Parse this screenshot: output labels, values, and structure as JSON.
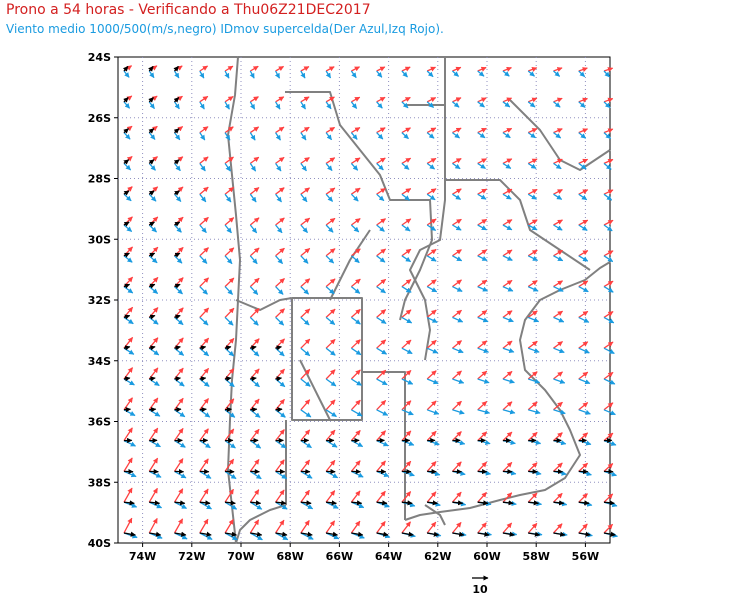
{
  "header": {
    "title": "Prono a 54 horas - Verificando a Thu06Z21DEC2017",
    "subtitle": "Viento medio 1000/500(m/s,negro) IDmov supercelda(Der Azul,Izq Rojo)."
  },
  "map": {
    "lon_range": [
      -75,
      -55
    ],
    "lat_range": [
      -40,
      -24
    ],
    "lat_labels": [
      "24S",
      "26S",
      "28S",
      "30S",
      "32S",
      "34S",
      "36S",
      "38S",
      "40S"
    ],
    "lon_labels": [
      "74W",
      "72W",
      "70W",
      "68W",
      "66W",
      "64W",
      "62W",
      "60W",
      "58W",
      "56W"
    ],
    "grid": "dotted",
    "colors": {
      "mean_wind": "#000000",
      "right_mover": "#1a9be0",
      "left_mover": "#ff4040",
      "borders": "#808080"
    }
  },
  "legend": {
    "reference_vector_label": "10",
    "reference_vector_ms": 10
  }
}
